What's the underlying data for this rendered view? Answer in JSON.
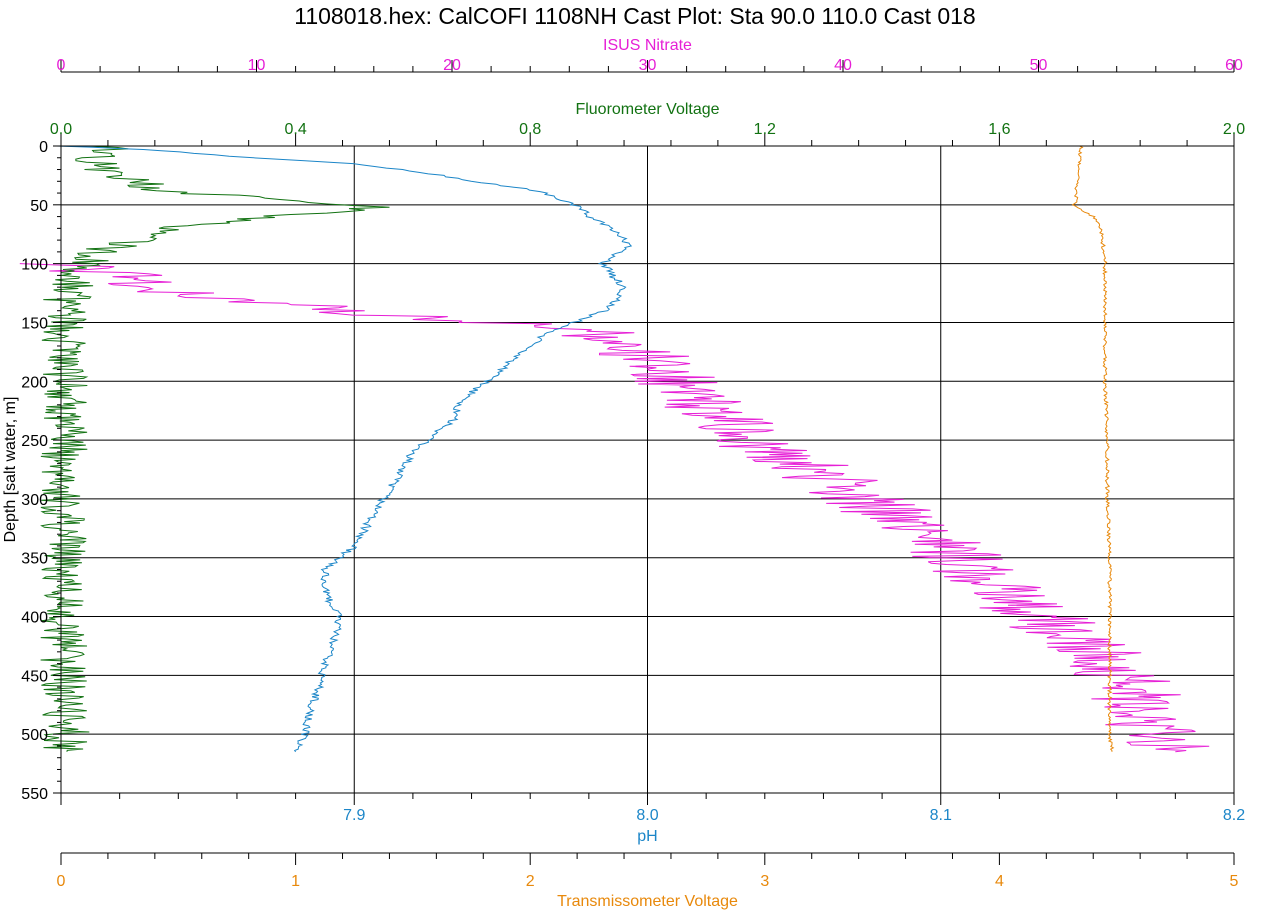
{
  "chart_data": {
    "type": "line",
    "title": "1108018.hex: CalCOFI 1108NH Cast Plot: Sta 90.0 110.0 Cast 018",
    "grid": true,
    "y_axis": {
      "label": "Depth [salt water, m]",
      "range": [
        0,
        550
      ],
      "inverted": true,
      "ticks": [
        "0",
        "50",
        "100",
        "150",
        "200",
        "250",
        "300",
        "350",
        "400",
        "450",
        "500",
        "550"
      ],
      "color": "#000000"
    },
    "x_axes": [
      {
        "id": "nitrate",
        "label": "ISUS Nitrate",
        "position": "top-outer",
        "range": [
          0,
          60
        ],
        "ticks": [
          "0",
          "10",
          "20",
          "30",
          "40",
          "50",
          "60"
        ],
        "color": "#e61fd6"
      },
      {
        "id": "fluor",
        "label": "Fluorometer Voltage",
        "position": "top-inner",
        "range": [
          0,
          2
        ],
        "ticks": [
          "0.0",
          "0.4",
          "0.8",
          "1.2",
          "1.6",
          "2.0"
        ],
        "color": "#127212"
      },
      {
        "id": "ph",
        "label": "pH",
        "position": "bottom-inner",
        "range": [
          7.8,
          8.2
        ],
        "ticks": [
          "7.9",
          "8.0",
          "8.1",
          "8.2"
        ],
        "color": "#1c86c8"
      },
      {
        "id": "trans",
        "label": "Transmissometer Voltage",
        "position": "bottom-outer",
        "range": [
          0,
          5
        ],
        "ticks": [
          "0",
          "1",
          "2",
          "3",
          "4",
          "5"
        ],
        "color": "#e8890c"
      }
    ],
    "series": [
      {
        "name": "ISUS Nitrate",
        "axis": "nitrate",
        "color": "#e61fd6",
        "noise": 2.4,
        "points": [
          [
            0.2,
            100
          ],
          [
            1,
            105
          ],
          [
            3,
            110
          ],
          [
            4,
            118
          ],
          [
            6,
            125
          ],
          [
            9,
            130
          ],
          [
            12,
            135
          ],
          [
            14,
            140
          ],
          [
            18,
            145
          ],
          [
            22,
            150
          ],
          [
            26,
            155
          ],
          [
            27.5,
            160
          ],
          [
            28.5,
            165
          ],
          [
            29.5,
            175
          ],
          [
            30.5,
            185
          ],
          [
            31.5,
            200
          ],
          [
            32.5,
            215
          ],
          [
            33.5,
            230
          ],
          [
            35,
            245
          ],
          [
            36.5,
            260
          ],
          [
            38.5,
            275
          ],
          [
            40,
            290
          ],
          [
            41.5,
            305
          ],
          [
            43.5,
            320
          ],
          [
            45,
            335
          ],
          [
            46,
            350
          ],
          [
            47,
            365
          ],
          [
            48.5,
            380
          ],
          [
            49.5,
            395
          ],
          [
            51,
            410
          ],
          [
            52.5,
            425
          ],
          [
            53.5,
            440
          ],
          [
            54.5,
            455
          ],
          [
            55,
            470
          ],
          [
            55.5,
            485
          ],
          [
            56,
            500
          ],
          [
            56.5,
            508
          ],
          [
            57,
            515
          ]
        ]
      },
      {
        "name": "Fluorometer Voltage",
        "axis": "fluor",
        "color": "#127212",
        "noise": 0.04,
        "points": [
          [
            0.08,
            0
          ],
          [
            0.06,
            10
          ],
          [
            0.07,
            20
          ],
          [
            0.12,
            30
          ],
          [
            0.18,
            38
          ],
          [
            0.3,
            43
          ],
          [
            0.45,
            48
          ],
          [
            0.55,
            52
          ],
          [
            0.45,
            57
          ],
          [
            0.3,
            62
          ],
          [
            0.2,
            70
          ],
          [
            0.12,
            80
          ],
          [
            0.07,
            90
          ],
          [
            0.04,
            100
          ],
          [
            0.03,
            110
          ],
          [
            0.015,
            120
          ],
          [
            0.005,
            140
          ],
          [
            0.005,
            200
          ],
          [
            0.005,
            300
          ],
          [
            0.005,
            400
          ],
          [
            0.005,
            450
          ],
          [
            0.01,
            515
          ]
        ]
      },
      {
        "name": "pH",
        "axis": "ph",
        "color": "#1c86c8",
        "noise": 0.0015,
        "points": [
          [
            7.8,
            0
          ],
          [
            7.82,
            2
          ],
          [
            7.84,
            5
          ],
          [
            7.865,
            10
          ],
          [
            7.9,
            15
          ],
          [
            7.915,
            20
          ],
          [
            7.93,
            25
          ],
          [
            7.94,
            30
          ],
          [
            7.955,
            35
          ],
          [
            7.965,
            40
          ],
          [
            7.97,
            45
          ],
          [
            7.975,
            50
          ],
          [
            7.978,
            55
          ],
          [
            7.98,
            60
          ],
          [
            7.985,
            65
          ],
          [
            7.987,
            70
          ],
          [
            7.99,
            75
          ],
          [
            7.992,
            80
          ],
          [
            7.995,
            85
          ],
          [
            7.99,
            90
          ],
          [
            7.985,
            100
          ],
          [
            7.988,
            110
          ],
          [
            7.992,
            120
          ],
          [
            7.99,
            130
          ],
          [
            7.985,
            140
          ],
          [
            7.975,
            150
          ],
          [
            7.965,
            160
          ],
          [
            7.96,
            170
          ],
          [
            7.955,
            180
          ],
          [
            7.95,
            190
          ],
          [
            7.945,
            200
          ],
          [
            7.94,
            210
          ],
          [
            7.935,
            220
          ],
          [
            7.935,
            230
          ],
          [
            7.93,
            240
          ],
          [
            7.92,
            260
          ],
          [
            7.915,
            280
          ],
          [
            7.91,
            300
          ],
          [
            7.905,
            320
          ],
          [
            7.9,
            340
          ],
          [
            7.89,
            360
          ],
          [
            7.89,
            380
          ],
          [
            7.895,
            400
          ],
          [
            7.893,
            420
          ],
          [
            7.89,
            440
          ],
          [
            7.888,
            460
          ],
          [
            7.885,
            480
          ],
          [
            7.883,
            500
          ],
          [
            7.88,
            515
          ]
        ]
      },
      {
        "name": "Transmissometer Voltage",
        "axis": "trans",
        "color": "#e8890c",
        "noise": 0.008,
        "points": [
          [
            4.35,
            0
          ],
          [
            4.34,
            15
          ],
          [
            4.33,
            30
          ],
          [
            4.33,
            40
          ],
          [
            4.32,
            50
          ],
          [
            4.35,
            55
          ],
          [
            4.4,
            60
          ],
          [
            4.43,
            70
          ],
          [
            4.44,
            80
          ],
          [
            4.45,
            100
          ],
          [
            4.45,
            150
          ],
          [
            4.45,
            200
          ],
          [
            4.46,
            250
          ],
          [
            4.46,
            300
          ],
          [
            4.47,
            350
          ],
          [
            4.47,
            400
          ],
          [
            4.47,
            450
          ],
          [
            4.47,
            500
          ],
          [
            4.48,
            515
          ]
        ]
      }
    ]
  }
}
